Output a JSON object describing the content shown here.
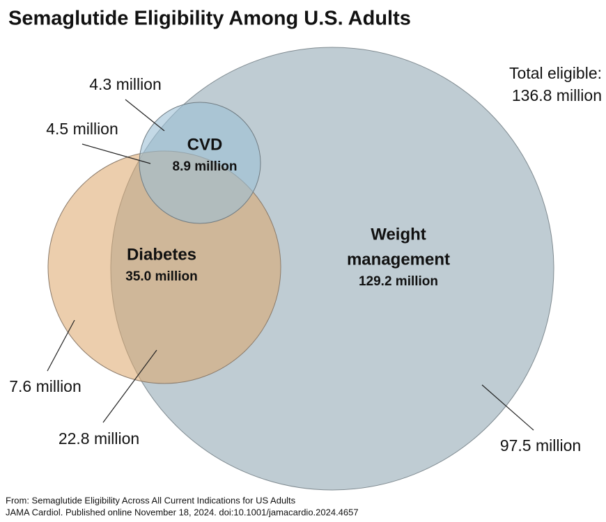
{
  "title": "Semaglutide Eligibility Among U.S. Adults",
  "sets": [
    {
      "name": [
        "CVD"
      ],
      "total": "8.9 million"
    },
    {
      "name": [
        "Diabetes"
      ],
      "total": "35.0 million"
    },
    {
      "name": [
        "Weight",
        "management"
      ],
      "total": "129.2 million"
    }
  ],
  "total_eligible": {
    "label": "Total eligible:",
    "value": "136.8 million"
  },
  "regions": [
    "4.3 million",
    "4.5 million",
    "7.6 million",
    "22.8 million",
    "97.5 million"
  ],
  "source": [
    "From: Semaglutide Eligibility Across All Current Indications for US Adults",
    "JAMA Cardiol. Published online  November 18, 2024. doi:10.1001/jamacardio.2024.4657"
  ]
}
